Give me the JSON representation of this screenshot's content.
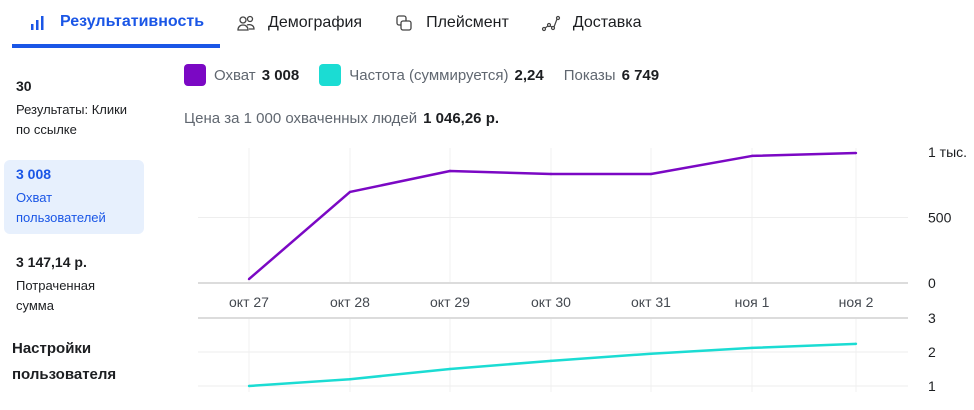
{
  "tabs": [
    {
      "label": "Результативность",
      "icon": "bar-chart-icon",
      "active": true
    },
    {
      "label": "Демография",
      "icon": "people-icon"
    },
    {
      "label": "Плейсмент",
      "icon": "placement-icon"
    },
    {
      "label": "Доставка",
      "icon": "delivery-icon"
    }
  ],
  "side": {
    "metrics": [
      {
        "value": "30",
        "label": "Результаты: Клики по ссылке"
      },
      {
        "value": "3 008",
        "label": "Охват пользователей",
        "selected": true
      },
      {
        "value": "3 147,14 р.",
        "label": "Потраченная сумма"
      }
    ],
    "settings": "Настройки пользователя"
  },
  "legend": {
    "reach_label": "Охват",
    "reach_value": "3 008",
    "freq_label": "Частота (суммируется)",
    "freq_value": "2,24",
    "impr_label": "Показы",
    "impr_value": "6 749"
  },
  "cost": {
    "label": "Цена за 1 000 охваченных людей",
    "value": "1 046,26 р."
  },
  "colors": {
    "reach": "#7b08c4",
    "freq": "#1bdcd3",
    "accent": "#1a56e6"
  },
  "chart_data": [
    {
      "type": "line",
      "title": "Охват",
      "categories": [
        "окт 27",
        "окт 28",
        "окт 29",
        "окт 30",
        "окт 31",
        "ноя 1",
        "ноя 2"
      ],
      "values": [
        30,
        695,
        855,
        832,
        832,
        970,
        992
      ],
      "ylim": [
        0,
        1000
      ],
      "yticks": [
        "0",
        "500",
        "1 тыс."
      ],
      "ytick_values": [
        0,
        500,
        1000
      ]
    },
    {
      "type": "line",
      "title": "Частота (суммируется)",
      "categories": [
        "окт 27",
        "окт 28",
        "окт 29",
        "окт 30",
        "окт 31",
        "ноя 1",
        "ноя 2"
      ],
      "values": [
        1.0,
        1.2,
        1.5,
        1.74,
        1.95,
        2.12,
        2.24
      ],
      "ylim": [
        1,
        3
      ],
      "yticks": [
        "1",
        "2",
        "3"
      ],
      "ytick_values": [
        1,
        2,
        3
      ]
    }
  ]
}
